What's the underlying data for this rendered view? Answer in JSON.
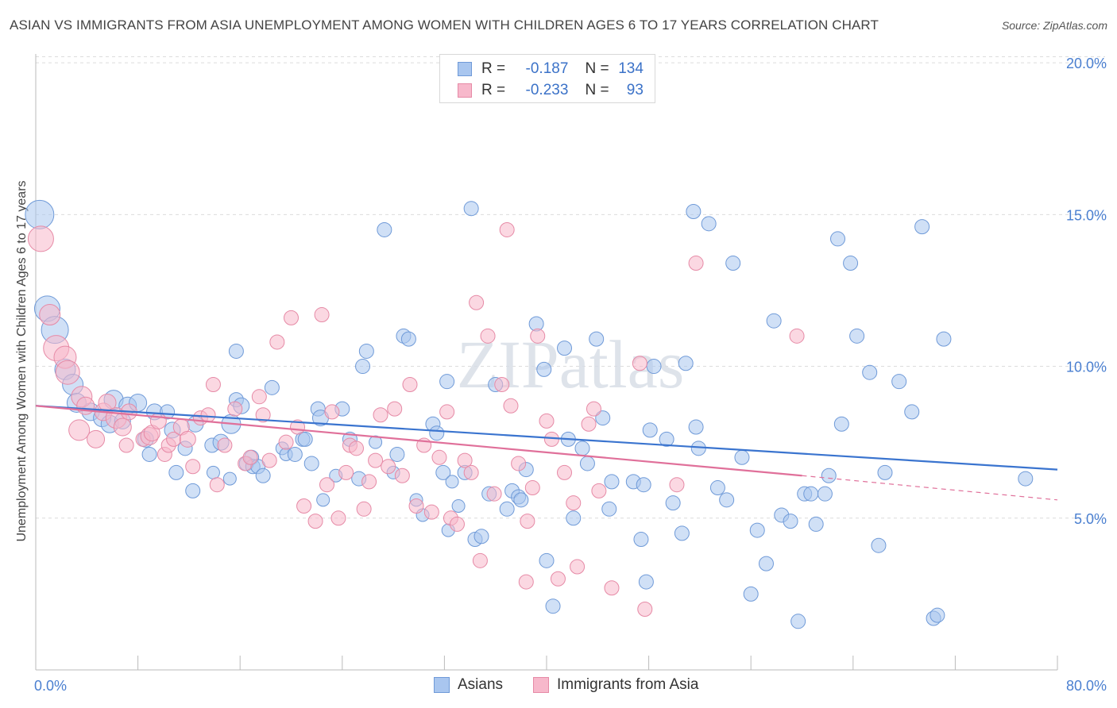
{
  "title": "ASIAN VS IMMIGRANTS FROM ASIA UNEMPLOYMENT AMONG WOMEN WITH CHILDREN AGES 6 TO 17 YEARS CORRELATION CHART",
  "source": "Source: ZipAtlas.com",
  "watermark": "ZIPatlas",
  "legend": {
    "r_label": "R =",
    "n_label": "N =",
    "rows": [
      {
        "r": "-0.187",
        "n": "134",
        "color": "#a9c6ef",
        "stroke": "#6f9ad8"
      },
      {
        "r": "-0.233",
        "n": "93",
        "color": "#f7b8cb",
        "stroke": "#e68aa6"
      }
    ]
  },
  "bottom_legend": [
    "Asians",
    "Immigrants from Asia"
  ],
  "chart_data": {
    "type": "scatter",
    "title": "ASIAN VS IMMIGRANTS FROM ASIA UNEMPLOYMENT AMONG WOMEN WITH CHILDREN AGES 6 TO 17 YEARS CORRELATION CHART",
    "xlabel": "",
    "ylabel": "Unemployment Among Women with Children Ages 6 to 17 years",
    "xlim": [
      0,
      80
    ],
    "ylim": [
      0,
      20.5
    ],
    "x_tick_labels": [
      "0.0%",
      "80.0%"
    ],
    "y_ticks": [
      5,
      10,
      15,
      20
    ],
    "y_tick_labels": [
      "5.0%",
      "10.0%",
      "15.0%",
      "20.0%"
    ],
    "grid": true,
    "legend_position": "top-center",
    "series": [
      {
        "name": "Asians",
        "color": "#a9c6ef",
        "stroke": "#6f9ad8",
        "trend": {
          "x": [
            0,
            80
          ],
          "y": [
            8.7,
            6.6
          ],
          "color": "#3a74cf"
        },
        "points": [
          [
            0.3,
            15.0,
            18
          ],
          [
            0.9,
            11.9,
            16
          ],
          [
            1.5,
            11.2,
            17
          ],
          [
            2.3,
            9.9,
            13
          ],
          [
            2.9,
            9.4,
            13
          ],
          [
            3.2,
            8.8,
            12
          ],
          [
            4.3,
            8.5,
            11
          ],
          [
            5.2,
            8.3,
            11
          ],
          [
            5.8,
            8.1,
            11
          ],
          [
            6.1,
            8.9,
            12
          ],
          [
            7.2,
            8.7,
            11
          ],
          [
            8.0,
            8.8,
            11
          ],
          [
            6.8,
            8.2,
            10
          ],
          [
            8.6,
            7.6,
            10
          ],
          [
            8.9,
            7.1,
            9
          ],
          [
            9.3,
            8.5,
            10
          ],
          [
            10.3,
            8.5,
            9
          ],
          [
            10.7,
            7.9,
            10
          ],
          [
            11.7,
            7.3,
            9
          ],
          [
            11.0,
            6.5,
            9
          ],
          [
            12.3,
            5.9,
            9
          ],
          [
            12.5,
            8.1,
            10
          ],
          [
            13.8,
            7.4,
            9
          ],
          [
            13.9,
            6.5,
            8
          ],
          [
            14.5,
            7.5,
            10
          ],
          [
            15.3,
            8.1,
            12
          ],
          [
            15.2,
            6.3,
            8
          ],
          [
            15.7,
            8.9,
            9
          ],
          [
            16.1,
            8.7,
            10
          ],
          [
            15.7,
            10.5,
            9
          ],
          [
            16.5,
            6.8,
            9
          ],
          [
            16.9,
            7.0,
            9
          ],
          [
            17.0,
            6.7,
            9
          ],
          [
            17.4,
            6.7,
            9
          ],
          [
            17.8,
            6.4,
            9
          ],
          [
            18.5,
            9.3,
            9
          ],
          [
            19.3,
            7.3,
            8
          ],
          [
            19.6,
            7.1,
            8
          ],
          [
            20.3,
            7.1,
            9
          ],
          [
            20.9,
            7.6,
            9
          ],
          [
            21.1,
            7.6,
            9
          ],
          [
            21.6,
            6.8,
            9
          ],
          [
            22.1,
            8.6,
            9
          ],
          [
            22.3,
            8.3,
            10
          ],
          [
            22.5,
            5.6,
            8
          ],
          [
            23.5,
            6.4,
            8
          ],
          [
            24.0,
            8.6,
            9
          ],
          [
            24.6,
            7.6,
            9
          ],
          [
            25.3,
            6.3,
            9
          ],
          [
            25.6,
            10.0,
            9
          ],
          [
            25.9,
            10.5,
            9
          ],
          [
            26.6,
            7.5,
            8
          ],
          [
            27.3,
            14.5,
            9
          ],
          [
            28.0,
            6.5,
            8
          ],
          [
            28.3,
            7.1,
            9
          ],
          [
            28.8,
            11.0,
            9
          ],
          [
            29.2,
            10.9,
            9
          ],
          [
            29.8,
            5.6,
            8
          ],
          [
            30.3,
            5.1,
            8
          ],
          [
            31.1,
            8.1,
            9
          ],
          [
            31.4,
            7.8,
            9
          ],
          [
            31.9,
            6.5,
            9
          ],
          [
            32.2,
            9.5,
            9
          ],
          [
            32.3,
            4.6,
            8
          ],
          [
            32.6,
            6.2,
            8
          ],
          [
            33.1,
            5.4,
            8
          ],
          [
            33.6,
            6.5,
            9
          ],
          [
            34.1,
            15.2,
            9
          ],
          [
            34.4,
            4.3,
            9
          ],
          [
            34.9,
            4.4,
            9
          ],
          [
            35.5,
            5.8,
            9
          ],
          [
            36.0,
            9.4,
            9
          ],
          [
            36.9,
            5.3,
            9
          ],
          [
            37.3,
            5.9,
            9
          ],
          [
            37.8,
            5.7,
            9
          ],
          [
            38.0,
            5.6,
            9
          ],
          [
            38.4,
            6.6,
            9
          ],
          [
            39.2,
            11.4,
            9
          ],
          [
            39.8,
            9.9,
            9
          ],
          [
            40.0,
            3.6,
            9
          ],
          [
            40.5,
            2.1,
            9
          ],
          [
            41.4,
            10.6,
            9
          ],
          [
            41.7,
            7.6,
            9
          ],
          [
            42.1,
            5.0,
            9
          ],
          [
            42.8,
            7.3,
            9
          ],
          [
            43.2,
            6.8,
            9
          ],
          [
            43.9,
            10.9,
            9
          ],
          [
            44.4,
            8.3,
            9
          ],
          [
            44.9,
            5.3,
            9
          ],
          [
            45.1,
            6.2,
            9
          ],
          [
            46.8,
            6.2,
            9
          ],
          [
            47.4,
            4.3,
            9
          ],
          [
            47.6,
            6.1,
            9
          ],
          [
            47.8,
            2.9,
            9
          ],
          [
            48.1,
            7.9,
            9
          ],
          [
            48.4,
            10.0,
            9
          ],
          [
            49.4,
            7.6,
            9
          ],
          [
            49.9,
            5.5,
            9
          ],
          [
            50.6,
            4.5,
            9
          ],
          [
            50.9,
            10.1,
            9
          ],
          [
            51.7,
            8.0,
            9
          ],
          [
            51.9,
            7.3,
            9
          ],
          [
            51.5,
            15.1,
            9
          ],
          [
            52.7,
            14.7,
            9
          ],
          [
            53.4,
            6.0,
            9
          ],
          [
            54.1,
            5.6,
            9
          ],
          [
            54.6,
            13.4,
            9
          ],
          [
            55.3,
            7.0,
            9
          ],
          [
            56.0,
            2.5,
            9
          ],
          [
            56.5,
            4.6,
            9
          ],
          [
            57.2,
            3.5,
            9
          ],
          [
            57.8,
            11.5,
            9
          ],
          [
            58.4,
            5.1,
            9
          ],
          [
            59.1,
            4.9,
            9
          ],
          [
            59.7,
            1.6,
            9
          ],
          [
            60.2,
            5.8,
            9
          ],
          [
            60.7,
            5.8,
            9
          ],
          [
            61.1,
            4.8,
            9
          ],
          [
            61.8,
            5.8,
            9
          ],
          [
            62.1,
            6.4,
            9
          ],
          [
            62.8,
            14.2,
            9
          ],
          [
            63.1,
            8.1,
            9
          ],
          [
            63.8,
            13.4,
            9
          ],
          [
            64.3,
            11.0,
            9
          ],
          [
            65.3,
            9.8,
            9
          ],
          [
            66.0,
            4.1,
            9
          ],
          [
            66.5,
            6.5,
            9
          ],
          [
            67.6,
            9.5,
            9
          ],
          [
            68.6,
            8.5,
            9
          ],
          [
            69.4,
            14.6,
            9
          ],
          [
            70.3,
            1.7,
            9
          ],
          [
            70.6,
            1.8,
            9
          ],
          [
            71.1,
            10.9,
            9
          ],
          [
            77.5,
            6.3,
            9
          ]
        ]
      },
      {
        "name": "Immigrants from Asia",
        "color": "#f7b8cb",
        "stroke": "#e68aa6",
        "trend": {
          "x": [
            0,
            60
          ],
          "y": [
            8.7,
            6.4
          ],
          "color": "#e0709a",
          "dashed_to": [
            80,
            5.6
          ]
        },
        "points": [
          [
            0.4,
            14.2,
            16
          ],
          [
            1.1,
            11.7,
            13
          ],
          [
            1.6,
            10.6,
            16
          ],
          [
            2.3,
            10.3,
            14
          ],
          [
            2.5,
            9.8,
            15
          ],
          [
            3.6,
            9.0,
            13
          ],
          [
            3.9,
            8.7,
            11
          ],
          [
            3.4,
            7.9,
            13
          ],
          [
            4.7,
            7.6,
            11
          ],
          [
            5.3,
            8.5,
            11
          ],
          [
            5.6,
            8.8,
            11
          ],
          [
            6.3,
            8.3,
            13
          ],
          [
            6.8,
            8.0,
            11
          ],
          [
            7.3,
            8.5,
            10
          ],
          [
            7.1,
            7.4,
            9
          ],
          [
            8.4,
            7.6,
            9
          ],
          [
            8.9,
            7.7,
            11
          ],
          [
            9.1,
            7.8,
            10
          ],
          [
            9.6,
            8.2,
            10
          ],
          [
            10.1,
            7.1,
            9
          ],
          [
            10.4,
            7.4,
            9
          ],
          [
            10.8,
            7.6,
            9
          ],
          [
            11.4,
            8.0,
            10
          ],
          [
            11.9,
            7.6,
            10
          ],
          [
            12.3,
            6.7,
            9
          ],
          [
            12.9,
            8.3,
            9
          ],
          [
            13.5,
            8.4,
            9
          ],
          [
            13.9,
            9.4,
            9
          ],
          [
            14.2,
            6.1,
            9
          ],
          [
            14.8,
            7.4,
            9
          ],
          [
            15.6,
            8.6,
            9
          ],
          [
            16.4,
            6.8,
            9
          ],
          [
            16.8,
            7.0,
            9
          ],
          [
            17.5,
            9.0,
            9
          ],
          [
            17.8,
            8.4,
            9
          ],
          [
            18.3,
            6.9,
            9
          ],
          [
            18.9,
            10.8,
            9
          ],
          [
            19.6,
            7.5,
            9
          ],
          [
            20.0,
            11.6,
            9
          ],
          [
            20.5,
            8.0,
            9
          ],
          [
            21.0,
            5.4,
            9
          ],
          [
            21.9,
            4.9,
            9
          ],
          [
            22.4,
            11.7,
            9
          ],
          [
            22.8,
            6.1,
            9
          ],
          [
            23.2,
            8.5,
            9
          ],
          [
            23.7,
            5.0,
            9
          ],
          [
            24.3,
            6.5,
            9
          ],
          [
            24.6,
            7.4,
            9
          ],
          [
            25.1,
            7.3,
            9
          ],
          [
            25.7,
            5.3,
            9
          ],
          [
            26.1,
            6.2,
            9
          ],
          [
            26.6,
            6.9,
            9
          ],
          [
            27.0,
            8.4,
            9
          ],
          [
            27.6,
            6.7,
            9
          ],
          [
            28.1,
            8.6,
            9
          ],
          [
            28.7,
            6.4,
            9
          ],
          [
            29.3,
            9.4,
            9
          ],
          [
            29.8,
            5.4,
            9
          ],
          [
            30.4,
            7.4,
            9
          ],
          [
            31.0,
            5.2,
            9
          ],
          [
            31.6,
            7.0,
            9
          ],
          [
            32.2,
            8.5,
            9
          ],
          [
            32.5,
            5.0,
            9
          ],
          [
            33.0,
            4.8,
            9
          ],
          [
            33.6,
            6.9,
            9
          ],
          [
            34.1,
            6.5,
            9
          ],
          [
            34.5,
            12.1,
            9
          ],
          [
            34.8,
            3.6,
            9
          ],
          [
            35.4,
            11.0,
            9
          ],
          [
            35.9,
            5.8,
            9
          ],
          [
            36.5,
            9.4,
            9
          ],
          [
            36.9,
            14.5,
            9
          ],
          [
            37.2,
            8.7,
            9
          ],
          [
            37.8,
            6.8,
            9
          ],
          [
            38.4,
            2.9,
            9
          ],
          [
            38.9,
            6.0,
            9
          ],
          [
            38.5,
            4.9,
            9
          ],
          [
            39.3,
            11.0,
            9
          ],
          [
            40.0,
            8.2,
            9
          ],
          [
            40.4,
            7.6,
            9
          ],
          [
            40.9,
            3.0,
            9
          ],
          [
            41.4,
            6.5,
            9
          ],
          [
            42.1,
            5.5,
            9
          ],
          [
            42.4,
            3.4,
            9
          ],
          [
            43.3,
            8.1,
            9
          ],
          [
            43.7,
            8.6,
            9
          ],
          [
            44.1,
            5.9,
            9
          ],
          [
            45.1,
            2.7,
            9
          ],
          [
            47.3,
            10.1,
            9
          ],
          [
            47.7,
            2.0,
            9
          ],
          [
            50.2,
            6.1,
            9
          ],
          [
            51.7,
            13.4,
            9
          ],
          [
            59.6,
            11.0,
            9
          ]
        ]
      }
    ]
  }
}
